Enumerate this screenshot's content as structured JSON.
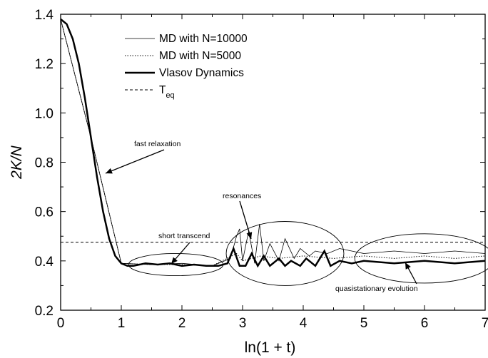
{
  "chart_data": {
    "type": "line",
    "xlabel": "ln(1 + t)",
    "ylabel": "2K/N",
    "xlim": [
      0,
      7
    ],
    "ylim": [
      0.2,
      1.4
    ],
    "x_ticks": [
      "0",
      "1",
      "2",
      "3",
      "4",
      "5",
      "6",
      "7"
    ],
    "y_ticks": [
      "0.2",
      "0.4",
      "0.6",
      "0.8",
      "1.0",
      "1.2",
      "1.4"
    ],
    "grid": false,
    "legend_position": "top-center",
    "legend": [
      {
        "name": "MD with N=10000",
        "style": "thin-solid"
      },
      {
        "name": "MD with N=5000",
        "style": "dotted"
      },
      {
        "name": "Vlasov Dynamics",
        "style": "thick-solid"
      },
      {
        "name": "T_eq",
        "style": "dashed"
      }
    ],
    "series": [
      {
        "name": "Vlasov Dynamics",
        "x": [
          0.0,
          0.1,
          0.2,
          0.3,
          0.4,
          0.5,
          0.6,
          0.7,
          0.8,
          0.9,
          1.0,
          1.1,
          1.2,
          1.4,
          1.6,
          1.8,
          2.0,
          2.2,
          2.4,
          2.6,
          2.75,
          2.85,
          2.95,
          3.05,
          3.15,
          3.25,
          3.35,
          3.45,
          3.6,
          3.7,
          3.8,
          3.95,
          4.05,
          4.2,
          4.35,
          4.45,
          4.6,
          4.8,
          5.0,
          5.5,
          6.0,
          6.5,
          7.0
        ],
        "y": [
          1.38,
          1.36,
          1.3,
          1.2,
          1.06,
          0.9,
          0.74,
          0.6,
          0.49,
          0.42,
          0.39,
          0.38,
          0.38,
          0.39,
          0.385,
          0.39,
          0.38,
          0.385,
          0.38,
          0.38,
          0.39,
          0.45,
          0.38,
          0.38,
          0.43,
          0.38,
          0.42,
          0.38,
          0.41,
          0.38,
          0.4,
          0.38,
          0.41,
          0.38,
          0.44,
          0.38,
          0.4,
          0.39,
          0.4,
          0.39,
          0.4,
          0.39,
          0.4
        ]
      },
      {
        "name": "MD with N=10000",
        "x": [
          0.0,
          0.5,
          1.0,
          1.5,
          2.0,
          2.5,
          2.8,
          2.9,
          2.95,
          3.0,
          3.1,
          3.2,
          3.28,
          3.35,
          3.45,
          3.6,
          3.7,
          3.85,
          3.95,
          4.1,
          4.2,
          4.4,
          4.6,
          4.8,
          5.0,
          5.5,
          6.0,
          6.5,
          7.0
        ],
        "y": [
          1.38,
          0.9,
          0.39,
          0.385,
          0.39,
          0.38,
          0.41,
          0.5,
          0.53,
          0.4,
          0.52,
          0.39,
          0.55,
          0.4,
          0.47,
          0.4,
          0.49,
          0.41,
          0.45,
          0.42,
          0.44,
          0.43,
          0.45,
          0.44,
          0.43,
          0.44,
          0.43,
          0.44,
          0.43
        ]
      },
      {
        "name": "MD with N=5000",
        "x": [
          0.0,
          0.5,
          1.0,
          1.5,
          2.0,
          2.5,
          2.9,
          3.0,
          3.3,
          3.6,
          4.0,
          4.5,
          5.0,
          5.5,
          6.0,
          6.5,
          7.0
        ],
        "y": [
          1.38,
          0.9,
          0.39,
          0.385,
          0.385,
          0.38,
          0.43,
          0.4,
          0.42,
          0.41,
          0.42,
          0.41,
          0.42,
          0.41,
          0.42,
          0.41,
          0.42
        ]
      },
      {
        "name": "T_eq",
        "x": [
          0.0,
          7.0
        ],
        "y": [
          0.476,
          0.476
        ]
      }
    ],
    "annotations": [
      {
        "text": "fast relaxation",
        "x": 0.55,
        "y": 0.63
      },
      {
        "text": "short transcend",
        "x": 1.9,
        "y": 0.385
      },
      {
        "text": "resonances",
        "x": 3.3,
        "y": 0.48
      },
      {
        "text": "quasistationary evolution",
        "x": 5.8,
        "y": 0.385
      }
    ]
  }
}
